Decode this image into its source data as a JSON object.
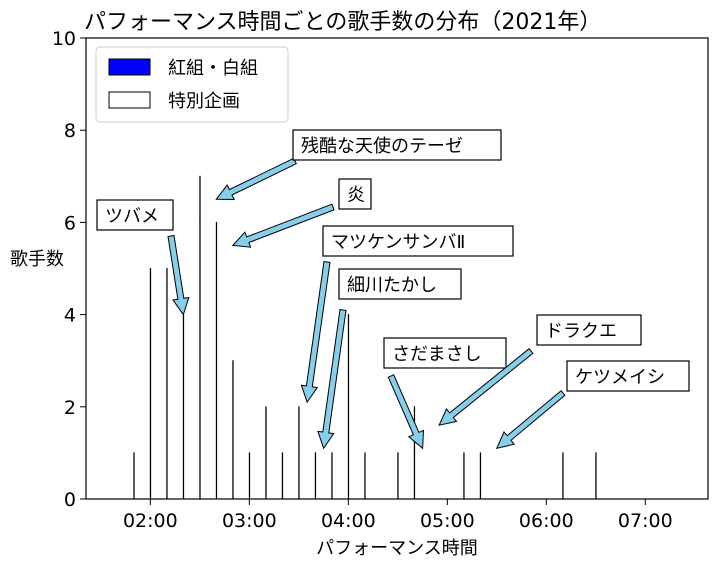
{
  "chart_data": {
    "type": "bar",
    "title": "パフォーマンス時間ごとの歌手数の分布（2021年）",
    "xlabel": "パフォーマンス時間",
    "ylabel": "歌手数",
    "ylim": [
      0,
      10
    ],
    "yticks": [
      0,
      2,
      4,
      6,
      8,
      10
    ],
    "xticks": [
      "02:00",
      "03:00",
      "04:00",
      "05:00",
      "06:00",
      "07:00"
    ],
    "bin_width_seconds": 10,
    "legend_position": "top-left",
    "colors": {
      "regular": "#0000ff",
      "special": "#ffffff",
      "edge": "#000000",
      "arrow": "#87ceeb"
    },
    "series": [
      {
        "name": "紅組・白組",
        "bins_start": [
          "01:50",
          "02:00",
          "02:10",
          "02:20",
          "02:30",
          "02:40",
          "02:50",
          "03:00",
          "03:10",
          "03:20",
          "03:30",
          "03:40",
          "03:50",
          "04:00",
          "04:10",
          "04:20",
          "04:30",
          "04:40",
          "04:50",
          "05:00",
          "05:10",
          "05:20",
          "05:30",
          "05:40",
          "05:50",
          "06:00",
          "06:10",
          "06:20",
          "06:30",
          "06:40"
        ],
        "values": [
          1,
          5,
          5,
          3,
          6,
          6,
          3,
          1,
          2,
          1,
          1,
          0,
          1,
          4,
          1,
          0,
          0,
          1,
          0,
          0,
          1,
          0,
          0,
          0,
          0,
          0,
          1,
          0,
          1,
          0
        ]
      },
      {
        "name": "特別企画",
        "bins_start": [
          "01:50",
          "02:00",
          "02:10",
          "02:20",
          "02:30",
          "02:40",
          "02:50",
          "03:00",
          "03:10",
          "03:20",
          "03:30",
          "03:40",
          "03:50",
          "04:00",
          "04:10",
          "04:20",
          "04:30",
          "04:40",
          "04:50",
          "05:00",
          "05:10",
          "05:20",
          "05:30",
          "05:40",
          "05:50",
          "06:00",
          "06:10",
          "06:20",
          "06:30",
          "06:40"
        ],
        "values": [
          0,
          0,
          0,
          1,
          1,
          0,
          0,
          0,
          0,
          0,
          1,
          1,
          0,
          0,
          0,
          0,
          1,
          1,
          0,
          0,
          0,
          1,
          0,
          0,
          0,
          0,
          0,
          0,
          0,
          0
        ]
      }
    ],
    "annotations": [
      {
        "text": "ツバメ",
        "target_time": "02:20",
        "target_count": 4
      },
      {
        "text": "残酷な天使のテーゼ",
        "target_time": "02:40",
        "target_count": 6.5
      },
      {
        "text": "炎",
        "target_time": "02:50",
        "target_count": 5.5
      },
      {
        "text": "マツケンサンバⅡ",
        "target_time": "03:35",
        "target_count": 2.1
      },
      {
        "text": "細川たかし",
        "target_time": "03:45",
        "target_count": 1.1
      },
      {
        "text": "さだまさし",
        "target_time": "04:45",
        "target_count": 1.1
      },
      {
        "text": "ドラクエ",
        "target_time": "04:55",
        "target_count": 1.6
      },
      {
        "text": "ケツメイシ",
        "target_time": "05:30",
        "target_count": 1.1
      }
    ]
  }
}
